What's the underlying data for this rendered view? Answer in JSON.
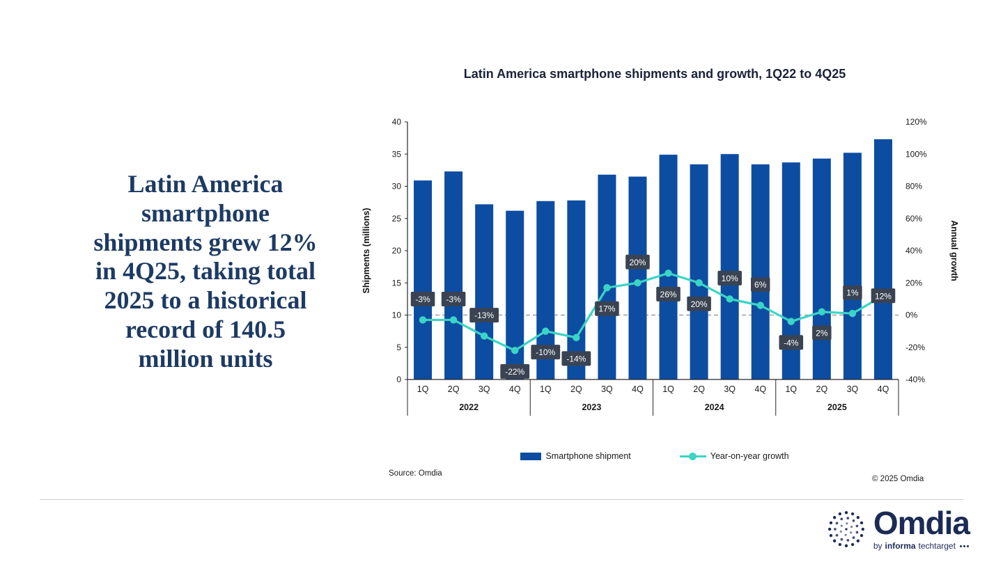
{
  "headline": {
    "text": "Latin America\nsmartphone\nshipments grew 12%\nin 4Q25, taking total\n2025 to a historical\nrecord of 140.5\nmillion units"
  },
  "chart_data": {
    "type": "combo-bar-line",
    "title": "Latin America smartphone shipments and growth, 1Q22 to 4Q25",
    "categories": [
      "1Q",
      "2Q",
      "3Q",
      "4Q",
      "1Q",
      "2Q",
      "3Q",
      "4Q",
      "1Q",
      "2Q",
      "3Q",
      "4Q",
      "1Q",
      "2Q",
      "3Q",
      "4Q"
    ],
    "year_groups": [
      "2022",
      "2023",
      "2024",
      "2025"
    ],
    "series": [
      {
        "name": "Smartphone shipment",
        "kind": "bar",
        "color": "#0C4DA2",
        "values": [
          30.9,
          32.3,
          27.2,
          26.2,
          27.7,
          27.8,
          31.8,
          31.5,
          34.9,
          33.4,
          35.0,
          33.4,
          33.7,
          34.3,
          35.2,
          37.3
        ]
      },
      {
        "name": "Year-on-year growth",
        "kind": "line",
        "color": "#3BD4C5",
        "values_pct": [
          -3,
          -3,
          -13,
          -22,
          -10,
          -14,
          17,
          20,
          26,
          20,
          10,
          6,
          -4,
          2,
          1,
          12
        ],
        "labels": [
          "-3%",
          "-3%",
          "-13%",
          "-22%",
          "-10%",
          "-14%",
          "17%",
          "20%",
          "26%",
          "20%",
          "10%",
          "6%",
          "-4%",
          "2%",
          "1%",
          "12%"
        ],
        "label_positions": [
          "above",
          "above",
          "above",
          "below",
          "below",
          "below",
          "below",
          "above",
          "below",
          "below",
          "above",
          "above",
          "below",
          "below",
          "above",
          "on"
        ],
        "label_box_color": "#3A4352"
      }
    ],
    "left_axis": {
      "title": "Shipments (millions)",
      "min": 0,
      "max": 40,
      "step": 5
    },
    "right_axis": {
      "title": "Annual growth",
      "min": -40,
      "max": 120,
      "step": 20,
      "suffix": "%"
    },
    "zero_line": {
      "value_pct": 0,
      "style": "dashed",
      "color": "#9E9E9E"
    },
    "legend_position": "bottom",
    "grid": false
  },
  "footer": {
    "source": "Source: Omdia",
    "copyright": "© 2025 Omdia"
  },
  "logo": {
    "name": "Omdia",
    "byline_prefix": "by",
    "byline_brand": "informa",
    "byline_suffix": "techtarget"
  },
  "colors": {
    "headline_navy": "#1D3A63",
    "bar_blue": "#0C4DA2",
    "growth_teal": "#3BD4C5",
    "label_box_slate": "#3A4352",
    "logo_navy": "#1B2B55"
  }
}
